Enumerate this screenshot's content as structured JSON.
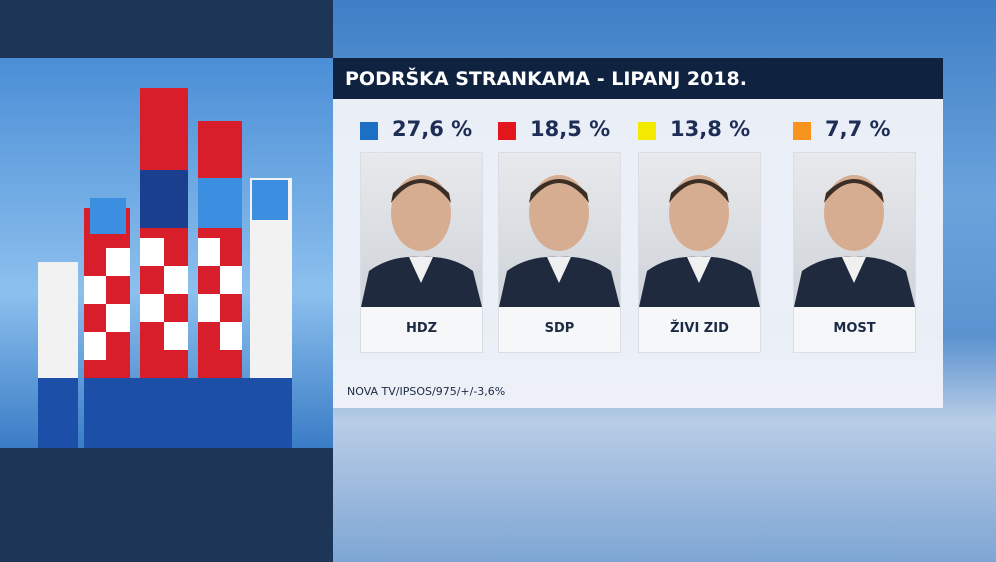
{
  "header": {
    "title": "PODRŠKA STRANKAMA - LIPANJ 2018."
  },
  "parties": [
    {
      "name": "HDZ",
      "value": "27,6 %",
      "color": "#1d6fc4"
    },
    {
      "name": "SDP",
      "value": "18,5 %",
      "color": "#e3161d"
    },
    {
      "name": "ŽIVI ZID",
      "value": "13,8 %",
      "color": "#f3ea00"
    },
    {
      "name": "MOST",
      "value": "7,7 %",
      "color": "#f7931e"
    }
  ],
  "source": "NOVA TV/IPSOS/975/+/-3,6%"
}
